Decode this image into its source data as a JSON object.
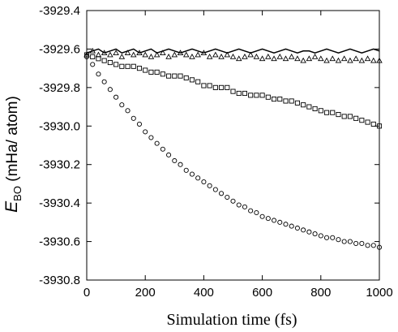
{
  "chart_data": {
    "type": "line",
    "title": "",
    "xlabel": "Simulation time (fs)",
    "ylabel": {
      "symbol": "E",
      "subscript": "BO",
      "unit": " (mHa/ atom)"
    },
    "xlim": [
      0,
      1000
    ],
    "ylim": [
      -3930.8,
      -3929.4
    ],
    "xticks": [
      0,
      200,
      400,
      600,
      800,
      1000
    ],
    "yticks": [
      -3929.4,
      -3929.6,
      -3929.8,
      -3930.0,
      -3930.2,
      -3930.4,
      -3930.6,
      -3930.8
    ],
    "xtick_labels": [
      "0",
      "200",
      "400",
      "600",
      "800",
      "1000"
    ],
    "ytick_labels": [
      "-3929.4",
      "-3929.6",
      "-3929.8",
      "-3930.0",
      "-3930.2",
      "-3930.4",
      "-3930.6",
      "-3930.8"
    ],
    "grid": false,
    "series": [
      {
        "marker": "none",
        "color": "#000000",
        "x": [
          0,
          20,
          40,
          60,
          80,
          100,
          120,
          140,
          160,
          180,
          200,
          220,
          240,
          260,
          280,
          300,
          320,
          340,
          360,
          380,
          400,
          420,
          440,
          460,
          480,
          500,
          520,
          540,
          560,
          580,
          600,
          620,
          640,
          660,
          680,
          700,
          720,
          740,
          760,
          780,
          800,
          820,
          840,
          860,
          880,
          900,
          920,
          940,
          960,
          980,
          1000
        ],
        "y": [
          -3929.62,
          -3929.61,
          -3929.6,
          -3929.62,
          -3929.61,
          -3929.6,
          -3929.62,
          -3929.61,
          -3929.6,
          -3929.62,
          -3929.61,
          -3929.6,
          -3929.62,
          -3929.61,
          -3929.6,
          -3929.61,
          -3929.62,
          -3929.61,
          -3929.6,
          -3929.61,
          -3929.62,
          -3929.61,
          -3929.6,
          -3929.61,
          -3929.62,
          -3929.61,
          -3929.6,
          -3929.61,
          -3929.62,
          -3929.61,
          -3929.6,
          -3929.61,
          -3929.62,
          -3929.61,
          -3929.6,
          -3929.61,
          -3929.62,
          -3929.61,
          -3929.61,
          -3929.62,
          -3929.61,
          -3929.6,
          -3929.61,
          -3929.62,
          -3929.61,
          -3929.6,
          -3929.61,
          -3929.62,
          -3929.61,
          -3929.6,
          -3929.61
        ]
      },
      {
        "marker": "triangle",
        "color": "#000000",
        "x": [
          0,
          20,
          40,
          60,
          80,
          100,
          120,
          140,
          160,
          180,
          200,
          220,
          240,
          260,
          280,
          300,
          320,
          340,
          360,
          380,
          400,
          420,
          440,
          460,
          480,
          500,
          520,
          540,
          560,
          580,
          600,
          620,
          640,
          660,
          680,
          700,
          720,
          740,
          760,
          780,
          800,
          820,
          840,
          860,
          880,
          900,
          920,
          940,
          960,
          980,
          1000
        ],
        "y": [
          -3929.63,
          -3929.61,
          -3929.63,
          -3929.62,
          -3929.63,
          -3929.62,
          -3929.64,
          -3929.62,
          -3929.63,
          -3929.62,
          -3929.63,
          -3929.64,
          -3929.63,
          -3929.62,
          -3929.64,
          -3929.63,
          -3929.62,
          -3929.63,
          -3929.64,
          -3929.63,
          -3929.62,
          -3929.64,
          -3929.63,
          -3929.64,
          -3929.63,
          -3929.64,
          -3929.65,
          -3929.64,
          -3929.63,
          -3929.64,
          -3929.65,
          -3929.64,
          -3929.65,
          -3929.64,
          -3929.65,
          -3929.64,
          -3929.65,
          -3929.66,
          -3929.65,
          -3929.64,
          -3929.65,
          -3929.66,
          -3929.65,
          -3929.66,
          -3929.65,
          -3929.66,
          -3929.65,
          -3929.66,
          -3929.65,
          -3929.66,
          -3929.66
        ]
      },
      {
        "marker": "square",
        "color": "#000000",
        "x": [
          0,
          20,
          40,
          60,
          80,
          100,
          120,
          140,
          160,
          180,
          200,
          220,
          240,
          260,
          280,
          300,
          320,
          340,
          360,
          380,
          400,
          420,
          440,
          460,
          480,
          500,
          520,
          540,
          560,
          580,
          600,
          620,
          640,
          660,
          680,
          700,
          720,
          740,
          760,
          780,
          800,
          820,
          840,
          860,
          880,
          900,
          920,
          940,
          960,
          980,
          1000
        ],
        "y": [
          -3929.63,
          -3929.64,
          -3929.65,
          -3929.66,
          -3929.67,
          -3929.68,
          -3929.69,
          -3929.69,
          -3929.69,
          -3929.7,
          -3929.71,
          -3929.72,
          -3929.72,
          -3929.73,
          -3929.74,
          -3929.74,
          -3929.74,
          -3929.75,
          -3929.76,
          -3929.77,
          -3929.79,
          -3929.79,
          -3929.8,
          -3929.8,
          -3929.8,
          -3929.82,
          -3929.83,
          -3929.83,
          -3929.84,
          -3929.84,
          -3929.84,
          -3929.85,
          -3929.86,
          -3929.86,
          -3929.87,
          -3929.87,
          -3929.88,
          -3929.89,
          -3929.9,
          -3929.91,
          -3929.92,
          -3929.93,
          -3929.93,
          -3929.94,
          -3929.95,
          -3929.95,
          -3929.96,
          -3929.97,
          -3929.98,
          -3929.99,
          -3930.0
        ]
      },
      {
        "marker": "circle",
        "color": "#000000",
        "x": [
          0,
          20,
          40,
          60,
          80,
          100,
          120,
          140,
          160,
          180,
          200,
          220,
          240,
          260,
          280,
          300,
          320,
          340,
          360,
          380,
          400,
          420,
          440,
          460,
          480,
          500,
          520,
          540,
          560,
          580,
          600,
          620,
          640,
          660,
          680,
          700,
          720,
          740,
          760,
          780,
          800,
          820,
          840,
          860,
          880,
          900,
          920,
          940,
          960,
          980,
          1000
        ],
        "y": [
          -3929.64,
          -3929.68,
          -3929.73,
          -3929.77,
          -3929.81,
          -3929.85,
          -3929.89,
          -3929.92,
          -3929.96,
          -3929.99,
          -3930.03,
          -3930.06,
          -3930.09,
          -3930.12,
          -3930.15,
          -3930.18,
          -3930.2,
          -3930.23,
          -3930.25,
          -3930.27,
          -3930.29,
          -3930.31,
          -3930.33,
          -3930.35,
          -3930.37,
          -3930.39,
          -3930.41,
          -3930.42,
          -3930.44,
          -3930.45,
          -3930.47,
          -3930.48,
          -3930.49,
          -3930.5,
          -3930.51,
          -3930.52,
          -3930.53,
          -3930.54,
          -3930.55,
          -3930.56,
          -3930.57,
          -3930.58,
          -3930.58,
          -3930.59,
          -3930.6,
          -3930.6,
          -3930.61,
          -3930.61,
          -3930.62,
          -3930.62,
          -3930.63
        ]
      }
    ]
  }
}
